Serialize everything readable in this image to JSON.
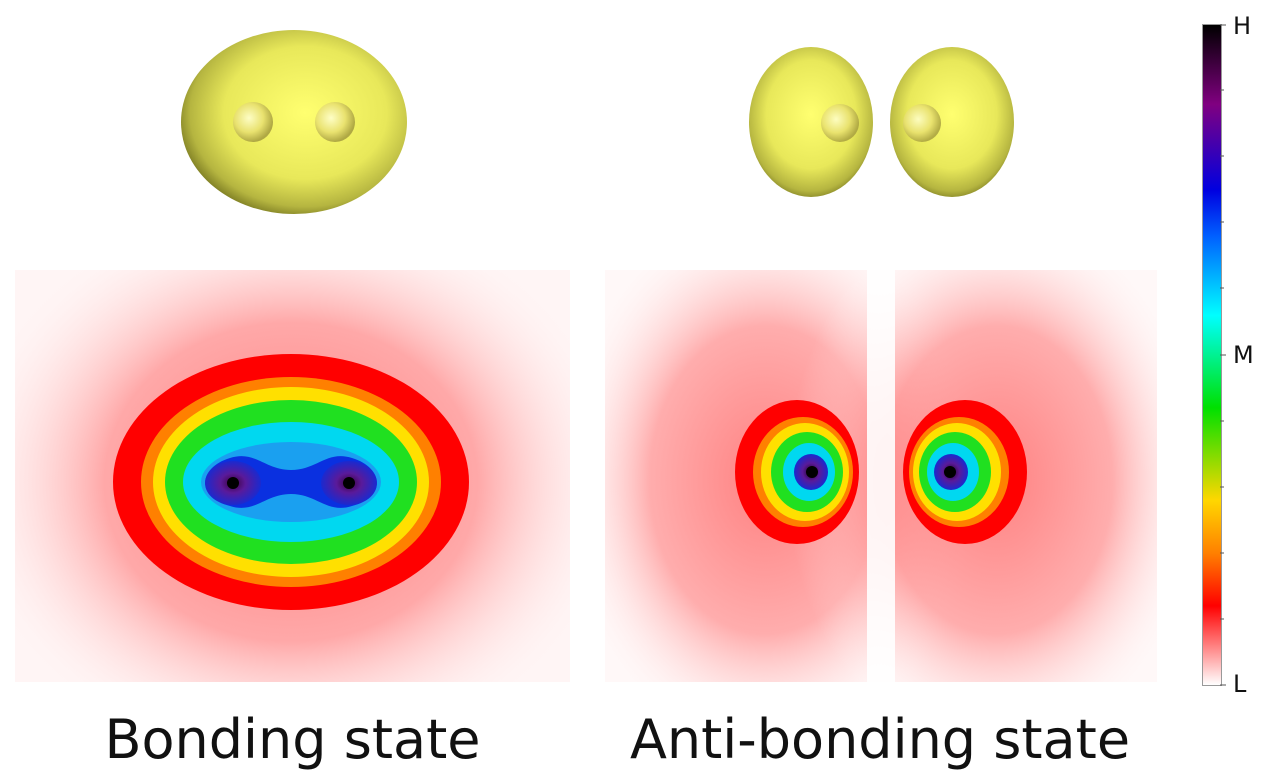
{
  "panels": [
    {
      "caption": "Bonding state"
    },
    {
      "caption": "Anti-bonding state"
    }
  ],
  "colorbar": {
    "high_label": "H",
    "mid_label": "M",
    "low_label": "L",
    "stops": [
      "#ffffff",
      "#ff0000",
      "#ffd700",
      "#00e000",
      "#00ffff",
      "#0000ff",
      "#800080",
      "#000000"
    ]
  },
  "colors": {
    "isosurface": "#f5f560",
    "isosurface_edge": "#6b6b1a"
  }
}
